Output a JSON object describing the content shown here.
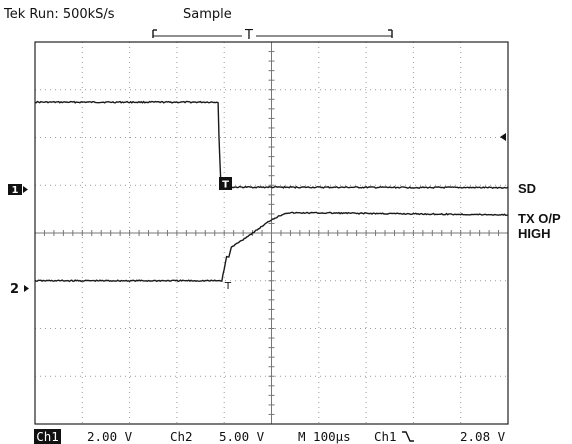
{
  "header": {
    "status": "Tek Run: 500kS/s",
    "mode": "Sample",
    "trigger_bracket_label": "T"
  },
  "colors": {
    "trace": "#1a1a1a",
    "grid": "#9a9a9a",
    "border": "#222222",
    "background": "#ffffff"
  },
  "chart_data": {
    "type": "line",
    "title": "",
    "xlabel": "",
    "ylabel": "",
    "grid": true,
    "xlim": [
      0,
      10
    ],
    "ylim": [
      -4,
      4
    ],
    "x_unit": "divisions",
    "y_unit": "divisions",
    "series": [
      {
        "name": "SD",
        "channel": "1",
        "ground_level": 1.0,
        "x": [
          0,
          3.87,
          3.89,
          3.93,
          3.95,
          4.2,
          10
        ],
        "y": [
          2.74,
          2.74,
          2.0,
          1.02,
          0.95,
          0.96,
          0.95
        ]
      },
      {
        "name": "TX O/P HIGH",
        "channel": "2",
        "ground_level": -1.0,
        "x": [
          0,
          3.95,
          4.05,
          4.1,
          4.15,
          4.6,
          5.0,
          5.3,
          6.0,
          10
        ],
        "y": [
          -1.0,
          -1.0,
          -0.5,
          -0.5,
          -0.3,
          0.0,
          0.28,
          0.42,
          0.42,
          0.38
        ]
      }
    ],
    "markers": {
      "channel1": "1",
      "channel2": "2",
      "trigger": "T"
    },
    "footer": {
      "ch1_label": "Ch1",
      "ch1_scale": "2.00 V",
      "ch2_label": "Ch2",
      "ch2_scale": "5.00 V",
      "timebase": "M 100µs",
      "trigger_source": "Ch1",
      "trigger_slope_icon": "falling-edge-icon",
      "trigger_level": "2.08 V"
    }
  },
  "labels": {
    "sd": "SD",
    "tx_line1": "TX O/P",
    "tx_line2": "HIGH"
  }
}
